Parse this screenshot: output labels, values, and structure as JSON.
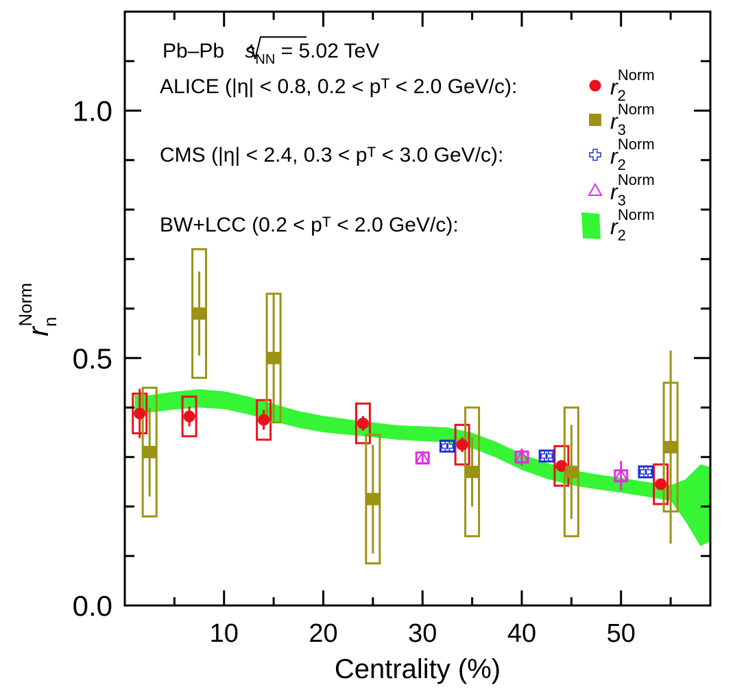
{
  "chart_data": {
    "type": "scatter",
    "xlabel": "Centrality (%)",
    "ylabel": {
      "main": "r",
      "sup": "Norm",
      "sub": "n"
    },
    "xlim": [
      0,
      59
    ],
    "ylim": [
      0,
      1.2
    ],
    "x_ticks": [
      10,
      20,
      30,
      40,
      50
    ],
    "y_ticks": [
      0.0,
      0.5,
      1.0
    ],
    "y_tick_labels": [
      "0.0",
      "0.5",
      "1.0"
    ],
    "grid": false,
    "legend_position": "top-right",
    "annotations": {
      "system": {
        "pre": "Pb–Pb ",
        "s": "s",
        "sub": "NN",
        "post": " = 5.02 TeV"
      },
      "alice_label": "ALICE (|η| < 0.8, 0.2 < pᵀ < 2.0 GeV/c):",
      "cms_label": "CMS (|η| < 2.4, 0.3 < pᵀ < 3.0 GeV/c):",
      "bw_label": "BW+LCC (0.2 < pᵀ < 2.0 GeV/c):"
    },
    "legend": [
      {
        "series": "ALICE r2",
        "main": "r",
        "sup": "Norm",
        "sub": "2"
      },
      {
        "series": "ALICE r3",
        "main": "r",
        "sup": "Norm",
        "sub": "3"
      },
      {
        "series": "CMS r2",
        "main": "r",
        "sup": "Norm",
        "sub": "2"
      },
      {
        "series": "CMS r3",
        "main": "r",
        "sup": "Norm",
        "sub": "3"
      },
      {
        "series": "BW+LCC r2",
        "main": "r",
        "sup": "Norm",
        "sub": "2"
      }
    ],
    "colors": {
      "alice_r2": "#e8121c",
      "alice_r3": "#9b9313",
      "cms_r2": "#1d2fd8",
      "cms_r3": "#e02ee0",
      "band": "#35f535"
    },
    "series": [
      {
        "key": "alice_r2",
        "marker": "circle",
        "points": [
          {
            "x": 1.5,
            "y": 0.388,
            "stat": 0.05,
            "sys": 0.04
          },
          {
            "x": 6.5,
            "y": 0.382,
            "stat": 0.02,
            "sys": 0.04
          },
          {
            "x": 14.0,
            "y": 0.375,
            "stat": 0.02,
            "sys": 0.04
          },
          {
            "x": 24.0,
            "y": 0.368,
            "stat": 0.015,
            "sys": 0.04
          },
          {
            "x": 34.0,
            "y": 0.325,
            "stat": 0.015,
            "sys": 0.04
          },
          {
            "x": 44.0,
            "y": 0.282,
            "stat": 0.012,
            "sys": 0.04
          },
          {
            "x": 54.0,
            "y": 0.245,
            "stat": 0.01,
            "sys": 0.04
          }
        ]
      },
      {
        "key": "alice_r3",
        "marker": "square",
        "points": [
          {
            "x": 2.5,
            "y": 0.31,
            "stat": 0.09,
            "sys": 0.13
          },
          {
            "x": 7.5,
            "y": 0.59,
            "stat": 0.085,
            "sys": 0.13
          },
          {
            "x": 15.0,
            "y": 0.5,
            "stat": 0.13,
            "sys": 0.13
          },
          {
            "x": 25.0,
            "y": 0.215,
            "stat": 0.11,
            "sys": 0.13
          },
          {
            "x": 35.0,
            "y": 0.27,
            "stat": 0.07,
            "sys": 0.13
          },
          {
            "x": 45.0,
            "y": 0.27,
            "stat": 0.095,
            "sys": 0.13
          },
          {
            "x": 55.0,
            "y": 0.32,
            "stat": 0.195,
            "sys": 0.13
          }
        ]
      },
      {
        "key": "cms_r2",
        "marker": "cross-open",
        "points": [
          {
            "x": 32.5,
            "y": 0.322,
            "stat": 0.006,
            "sys": 0.011
          },
          {
            "x": 42.5,
            "y": 0.302,
            "stat": 0.006,
            "sys": 0.011
          },
          {
            "x": 52.5,
            "y": 0.27,
            "stat": 0.006,
            "sys": 0.011
          }
        ]
      },
      {
        "key": "cms_r3",
        "marker": "triangle-open",
        "points": [
          {
            "x": 30.0,
            "y": 0.298,
            "stat": 0.008,
            "sys": 0.011
          },
          {
            "x": 40.0,
            "y": 0.3,
            "stat": 0.017,
            "sys": 0.011
          },
          {
            "x": 50.0,
            "y": 0.262,
            "stat": 0.03,
            "sys": 0.011
          }
        ]
      }
    ],
    "band": {
      "name": "BW+LCC r2",
      "x": [
        1.0,
        2.5,
        5.0,
        7.5,
        10.0,
        12.5,
        15.0,
        17.5,
        20.0,
        22.5,
        25.0,
        27.5,
        30.0,
        32.5,
        35.0,
        37.5,
        40.0,
        42.5,
        45.0,
        47.5,
        50.0,
        52.5,
        55.0,
        56.5,
        58.0,
        59.0
      ],
      "upper": [
        0.425,
        0.425,
        0.432,
        0.437,
        0.433,
        0.422,
        0.407,
        0.393,
        0.383,
        0.376,
        0.37,
        0.364,
        0.362,
        0.36,
        0.349,
        0.33,
        0.306,
        0.288,
        0.274,
        0.265,
        0.258,
        0.25,
        0.243,
        0.255,
        0.285,
        0.28
      ],
      "lower": [
        0.388,
        0.39,
        0.396,
        0.4,
        0.397,
        0.386,
        0.372,
        0.359,
        0.35,
        0.345,
        0.34,
        0.335,
        0.332,
        0.33,
        0.318,
        0.298,
        0.274,
        0.256,
        0.243,
        0.235,
        0.228,
        0.22,
        0.212,
        0.17,
        0.12,
        0.13
      ]
    }
  }
}
